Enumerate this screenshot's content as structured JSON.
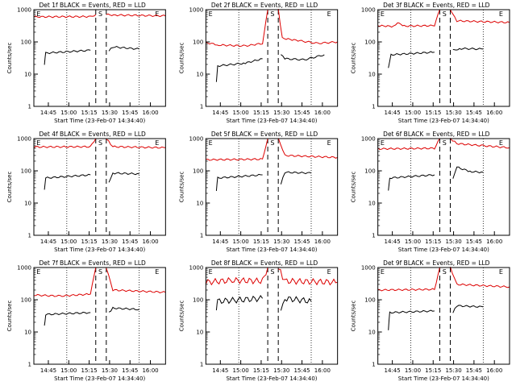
{
  "colors": {
    "black": "#000000",
    "red": "#dd0000",
    "axis": "#000000"
  },
  "chart_data": [
    {
      "type": "line",
      "title": "Det 1f BLACK = Events, RED = LLD",
      "xlabel": "Start Time (23-Feb-07 14:34:40)",
      "ylabel": "Counts/sec",
      "yscale": "log",
      "ylim": [
        1,
        1000
      ],
      "x_ticks": [
        "14:45",
        "15:00",
        "15:15",
        "15:30",
        "15:45",
        "16:00"
      ],
      "y_ticks": [
        "1",
        "10",
        "100",
        "1000"
      ],
      "segment_markers": [
        "E",
        "S",
        "E"
      ],
      "series": [
        {
          "color": "red",
          "segments": [
            [
              [
                0,
                600
              ],
              [
                0.43,
                610
              ],
              [
                0.47,
                700
              ]
            ],
            [
              [
                0.55,
                700
              ],
              [
                0.62,
                680
              ],
              [
                1.0,
                640
              ]
            ]
          ]
        },
        {
          "color": "black",
          "segments": [
            [
              [
                0.08,
                20
              ],
              [
                0.09,
                45
              ],
              [
                0.43,
                55
              ]
            ],
            [
              [
                0.57,
                55
              ],
              [
                0.6,
                70
              ],
              [
                0.8,
                60
              ]
            ]
          ]
        }
      ]
    },
    {
      "type": "line",
      "title": "Det 2f BLACK = Events, RED = LLD",
      "xlabel": "Start Time (23-Feb-07 14:34:40)",
      "ylabel": "Counts/sec",
      "yscale": "log",
      "ylim": [
        1,
        1000
      ],
      "x_ticks": [
        "14:45",
        "15:00",
        "15:15",
        "15:30",
        "15:45",
        "16:00"
      ],
      "y_ticks": [
        "1",
        "10",
        "100",
        "1000"
      ],
      "segment_markers": [
        "E",
        "S",
        "E"
      ],
      "series": [
        {
          "color": "red",
          "segments": [
            [
              [
                0,
                95
              ],
              [
                0.1,
                80
              ],
              [
                0.3,
                75
              ],
              [
                0.43,
                90
              ],
              [
                0.47,
                1000
              ]
            ],
            [
              [
                0.55,
                1000
              ],
              [
                0.58,
                130
              ],
              [
                0.7,
                110
              ],
              [
                0.85,
                90
              ],
              [
                1.0,
                100
              ]
            ]
          ]
        },
        {
          "color": "black",
          "segments": [
            [
              [
                0.08,
                6
              ],
              [
                0.09,
                18
              ],
              [
                0.3,
                22
              ],
              [
                0.43,
                30
              ]
            ],
            [
              [
                0.57,
                40
              ],
              [
                0.6,
                30
              ],
              [
                0.75,
                28
              ],
              [
                0.9,
                40
              ]
            ]
          ]
        }
      ]
    },
    {
      "type": "line",
      "title": "Det 3f BLACK = Events, RED = LLD",
      "xlabel": "Start Time (23-Feb-07 14:34:40)",
      "ylabel": "Counts/sec",
      "yscale": "log",
      "ylim": [
        1,
        1000
      ],
      "x_ticks": [
        "14:45",
        "15:00",
        "15:15",
        "15:30",
        "15:45",
        "16:00"
      ],
      "y_ticks": [
        "1",
        "10",
        "100",
        "1000"
      ],
      "segment_markers": [
        "E",
        "S",
        "E"
      ],
      "series": [
        {
          "color": "red",
          "segments": [
            [
              [
                0,
                320
              ],
              [
                0.12,
                300
              ],
              [
                0.15,
                380
              ],
              [
                0.2,
                310
              ],
              [
                0.43,
                320
              ],
              [
                0.47,
                1000
              ]
            ],
            [
              [
                0.55,
                1000
              ],
              [
                0.6,
                450
              ],
              [
                1.0,
                400
              ]
            ]
          ]
        },
        {
          "color": "black",
          "segments": [
            [
              [
                0.08,
                15
              ],
              [
                0.1,
                40
              ],
              [
                0.43,
                48
              ]
            ],
            [
              [
                0.57,
                55
              ],
              [
                0.62,
                62
              ],
              [
                0.8,
                60
              ]
            ]
          ]
        }
      ]
    },
    {
      "type": "line",
      "title": "Det 4f BLACK = Events, RED = LLD",
      "xlabel": "Start Time (23-Feb-07 14:34:40)",
      "ylabel": "Counts/sec",
      "yscale": "log",
      "ylim": [
        1,
        1000
      ],
      "x_ticks": [
        "14:45",
        "15:00",
        "15:15",
        "15:30",
        "15:45",
        "16:00"
      ],
      "y_ticks": [
        "1",
        "10",
        "100",
        "1000"
      ],
      "segment_markers": [
        "E",
        "S",
        "E"
      ],
      "series": [
        {
          "color": "red",
          "segments": [
            [
              [
                0,
                550
              ],
              [
                0.43,
                560
              ],
              [
                0.47,
                1000
              ]
            ],
            [
              [
                0.55,
                1000
              ],
              [
                0.6,
                560
              ],
              [
                1.0,
                520
              ]
            ]
          ]
        },
        {
          "color": "black",
          "segments": [
            [
              [
                0.08,
                25
              ],
              [
                0.09,
                60
              ],
              [
                0.43,
                75
              ]
            ],
            [
              [
                0.57,
                45
              ],
              [
                0.6,
                85
              ],
              [
                0.8,
                80
              ]
            ]
          ]
        }
      ]
    },
    {
      "type": "line",
      "title": "Det 5f BLACK = Events, RED = LLD",
      "xlabel": "Start Time (23-Feb-07 14:34:40)",
      "ylabel": "Counts/sec",
      "yscale": "log",
      "ylim": [
        1,
        1000
      ],
      "x_ticks": [
        "14:45",
        "15:00",
        "15:15",
        "15:30",
        "15:45",
        "16:00"
      ],
      "y_ticks": [
        "1",
        "10",
        "100",
        "1000"
      ],
      "segment_markers": [
        "E",
        "S",
        "E"
      ],
      "series": [
        {
          "color": "red",
          "segments": [
            [
              [
                0,
                220
              ],
              [
                0.43,
                230
              ],
              [
                0.47,
                1000
              ]
            ],
            [
              [
                0.55,
                1000
              ],
              [
                0.6,
                300
              ],
              [
                1.0,
                260
              ]
            ]
          ]
        },
        {
          "color": "black",
          "segments": [
            [
              [
                0.08,
                25
              ],
              [
                0.09,
                60
              ],
              [
                0.43,
                75
              ]
            ],
            [
              [
                0.57,
                40
              ],
              [
                0.6,
                90
              ],
              [
                0.8,
                85
              ]
            ]
          ]
        }
      ]
    },
    {
      "type": "line",
      "title": "Det 6f BLACK = Events, RED = LLD",
      "xlabel": "Start Time (23-Feb-07 14:34:40)",
      "ylabel": "Counts/sec",
      "yscale": "log",
      "ylim": [
        1,
        1000
      ],
      "x_ticks": [
        "14:45",
        "15:00",
        "15:15",
        "15:30",
        "15:45",
        "16:00"
      ],
      "y_ticks": [
        "1",
        "10",
        "100",
        "1000"
      ],
      "segment_markers": [
        "E",
        "S",
        "E"
      ],
      "series": [
        {
          "color": "red",
          "segments": [
            [
              [
                0,
                480
              ],
              [
                0.43,
                500
              ],
              [
                0.47,
                1000
              ]
            ],
            [
              [
                0.55,
                1000
              ],
              [
                0.6,
                700
              ],
              [
                0.8,
                600
              ],
              [
                1.0,
                520
              ]
            ]
          ]
        },
        {
          "color": "black",
          "segments": [
            [
              [
                0.08,
                25
              ],
              [
                0.09,
                60
              ],
              [
                0.43,
                75
              ]
            ],
            [
              [
                0.57,
                55
              ],
              [
                0.6,
                130
              ],
              [
                0.7,
                95
              ],
              [
                0.8,
                90
              ]
            ]
          ]
        }
      ]
    },
    {
      "type": "line",
      "title": "Det 7f BLACK = Events, RED = LLD",
      "xlabel": "Start Time (23-Feb-07 14:34:40)",
      "ylabel": "Counts/sec",
      "yscale": "log",
      "ylim": [
        1,
        1000
      ],
      "x_ticks": [
        "14:45",
        "15:00",
        "15:15",
        "15:30",
        "15:45",
        "16:00"
      ],
      "y_ticks": [
        "1",
        "10",
        "100",
        "1000"
      ],
      "segment_markers": [
        "E",
        "S",
        "E"
      ],
      "series": [
        {
          "color": "red",
          "segments": [
            [
              [
                0,
                140
              ],
              [
                0.2,
                130
              ],
              [
                0.43,
                150
              ],
              [
                0.47,
                1000
              ]
            ],
            [
              [
                0.55,
                1000
              ],
              [
                0.6,
                200
              ],
              [
                1.0,
                170
              ]
            ]
          ]
        },
        {
          "color": "black",
          "segments": [
            [
              [
                0.08,
                15
              ],
              [
                0.09,
                35
              ],
              [
                0.43,
                40
              ]
            ],
            [
              [
                0.57,
                40
              ],
              [
                0.6,
                55
              ],
              [
                0.8,
                50
              ]
            ]
          ]
        }
      ]
    },
    {
      "type": "line",
      "title": "Det 8f BLACK = Events, RED = LLD",
      "xlabel": "Start Time (23-Feb-07 14:34:40)",
      "ylabel": "Counts/sec",
      "yscale": "log",
      "ylim": [
        1,
        1000
      ],
      "x_ticks": [
        "14:45",
        "15:00",
        "15:15",
        "15:30",
        "15:45",
        "16:00"
      ],
      "y_ticks": [
        "1",
        "10",
        "100",
        "1000"
      ],
      "segment_markers": [
        "E",
        "S",
        "E"
      ],
      "series": [
        {
          "color": "red",
          "segments": [
            [
              [
                0,
                350
              ],
              [
                0.2,
                400
              ],
              [
                0.43,
                380
              ],
              [
                0.47,
                1000
              ]
            ],
            [
              [
                0.55,
                1000
              ],
              [
                0.6,
                380
              ],
              [
                1.0,
                350
              ]
            ]
          ]
        },
        {
          "color": "black",
          "segments": [
            [
              [
                0.08,
                45
              ],
              [
                0.09,
                90
              ],
              [
                0.43,
                110
              ]
            ],
            [
              [
                0.57,
                55
              ],
              [
                0.6,
                110
              ],
              [
                0.8,
                90
              ]
            ]
          ]
        }
      ]
    },
    {
      "type": "line",
      "title": "Det 9f BLACK = Events, RED = LLD",
      "xlabel": "Start Time (23-Feb-07 14:34:40)",
      "ylabel": "Counts/sec",
      "yscale": "log",
      "ylim": [
        1,
        1000
      ],
      "x_ticks": [
        "14:45",
        "15:00",
        "15:15",
        "15:30",
        "15:45",
        "16:00"
      ],
      "y_ticks": [
        "1",
        "10",
        "100",
        "1000"
      ],
      "segment_markers": [
        "E",
        "S",
        "E"
      ],
      "series": [
        {
          "color": "red",
          "segments": [
            [
              [
                0,
                200
              ],
              [
                0.43,
                210
              ],
              [
                0.47,
                1000
              ]
            ],
            [
              [
                0.55,
                1000
              ],
              [
                0.6,
                300
              ],
              [
                1.0,
                250
              ]
            ]
          ]
        },
        {
          "color": "black",
          "segments": [
            [
              [
                0.08,
                12
              ],
              [
                0.09,
                40
              ],
              [
                0.43,
                45
              ]
            ],
            [
              [
                0.57,
                40
              ],
              [
                0.6,
                65
              ],
              [
                0.8,
                60
              ]
            ]
          ]
        }
      ]
    }
  ]
}
